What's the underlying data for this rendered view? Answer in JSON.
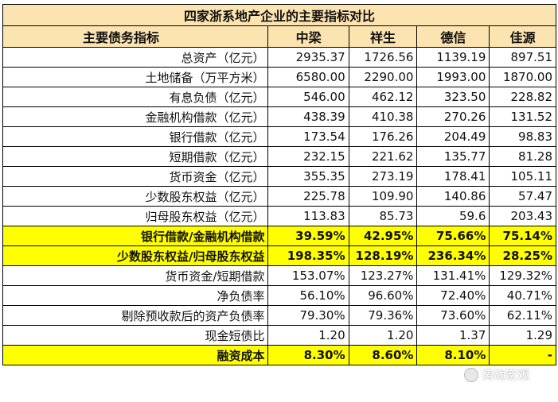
{
  "title": "四家浙系地产企业的主要指标对比",
  "headers": [
    "主要债务指标",
    "中梁",
    "祥生",
    "德信",
    "佳源"
  ],
  "rows": [
    {
      "label": "总资产（亿元）",
      "values": [
        "2935.37",
        "1726.56",
        "1139.19",
        "897.51"
      ],
      "highlight": false
    },
    {
      "label": "土地储备（万平方米）",
      "values": [
        "6580.00",
        "2290.00",
        "1993.00",
        "1870.00"
      ],
      "highlight": false
    },
    {
      "label": "有息负债（亿元）",
      "values": [
        "546.00",
        "462.12",
        "323.50",
        "228.82"
      ],
      "highlight": false
    },
    {
      "label": "金融机构借款（亿元）",
      "values": [
        "438.39",
        "410.38",
        "270.26",
        "131.52"
      ],
      "highlight": false
    },
    {
      "label": "银行借款（亿元）",
      "values": [
        "173.54",
        "176.26",
        "204.49",
        "98.83"
      ],
      "highlight": false
    },
    {
      "label": "短期借款（亿元）",
      "values": [
        "232.15",
        "221.62",
        "135.77",
        "81.28"
      ],
      "highlight": false
    },
    {
      "label": "货币资金（亿元）",
      "values": [
        "355.35",
        "273.19",
        "178.41",
        "105.11"
      ],
      "highlight": false
    },
    {
      "label": "少数股东权益（亿元）",
      "values": [
        "225.78",
        "109.90",
        "140.86",
        "57.47"
      ],
      "highlight": false
    },
    {
      "label": "归母股东权益（亿元）",
      "values": [
        "113.83",
        "85.73",
        "59.6",
        "203.43"
      ],
      "highlight": false
    },
    {
      "label": "银行借款/金融机构借款",
      "values": [
        "39.59%",
        "42.95%",
        "75.66%",
        "75.14%"
      ],
      "highlight": true
    },
    {
      "label": "少数股东权益/归母股东权益",
      "values": [
        "198.35%",
        "128.19%",
        "236.34%",
        "28.25%"
      ],
      "highlight": true
    },
    {
      "label": "货币资金/短期借款",
      "values": [
        "153.07%",
        "123.27%",
        "131.41%",
        "129.32%"
      ],
      "highlight": false
    },
    {
      "label": "净负债率",
      "values": [
        "56.10%",
        "96.60%",
        "72.40%",
        "40.71%"
      ],
      "highlight": false
    },
    {
      "label": "剔除预收款后的资产负债率",
      "values": [
        "79.30%",
        "79.36%",
        "73.60%",
        "62.11%"
      ],
      "highlight": false
    },
    {
      "label": "现金短债比",
      "values": [
        "1.20",
        "1.20",
        "1.37",
        "1.29"
      ],
      "highlight": false
    },
    {
      "label": "融资成本",
      "values": [
        "8.30%",
        "8.60%",
        "8.10%",
        "-"
      ],
      "highlight": true
    }
  ],
  "watermark": "涛动宏观",
  "colors": {
    "header_bg": "#fce4b0",
    "highlight_bg": "#ffff00"
  }
}
